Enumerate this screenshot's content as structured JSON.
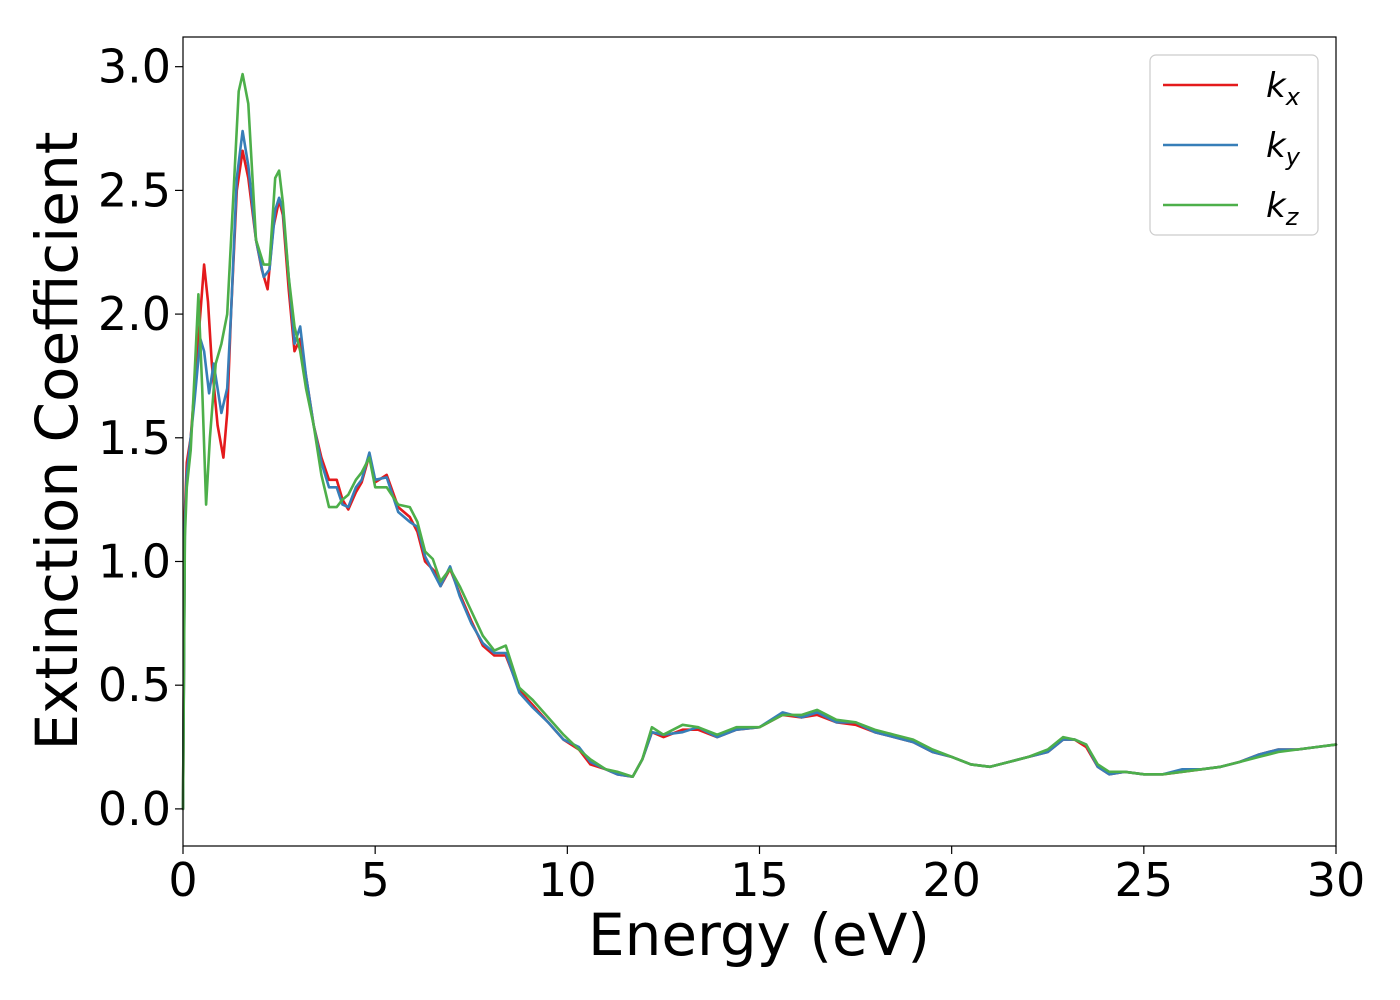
{
  "chart_data": {
    "type": "line",
    "title": "",
    "xlabel": "Energy (eV)",
    "ylabel": "Extinction Coefficient",
    "xlim": [
      0,
      30
    ],
    "ylim": [
      -0.15,
      3.12
    ],
    "xticks": [
      0,
      5,
      10,
      15,
      20,
      25,
      30
    ],
    "xtick_labels": [
      "0",
      "5",
      "10",
      "15",
      "20",
      "25",
      "30"
    ],
    "yticks": [
      0.0,
      0.5,
      1.0,
      1.5,
      2.0,
      2.5,
      3.0
    ],
    "ytick_labels": [
      "0.0",
      "0.5",
      "1.0",
      "1.5",
      "2.0",
      "2.5",
      "3.0"
    ],
    "grid": false,
    "legend_position": "top-right",
    "series": [
      {
        "name": "k_x",
        "label_base": "k",
        "label_sub": "x",
        "color": "#e41a1c",
        "points": [
          [
            0,
            0.0
          ],
          [
            0.05,
            1.2
          ],
          [
            0.1,
            1.4
          ],
          [
            0.2,
            1.5
          ],
          [
            0.3,
            1.7
          ],
          [
            0.4,
            1.9
          ],
          [
            0.55,
            2.2
          ],
          [
            0.65,
            2.05
          ],
          [
            0.75,
            1.8
          ],
          [
            0.9,
            1.55
          ],
          [
            1.05,
            1.42
          ],
          [
            1.15,
            1.6
          ],
          [
            1.25,
            2.0
          ],
          [
            1.4,
            2.5
          ],
          [
            1.55,
            2.66
          ],
          [
            1.7,
            2.55
          ],
          [
            1.9,
            2.3
          ],
          [
            2.05,
            2.18
          ],
          [
            2.2,
            2.1
          ],
          [
            2.35,
            2.35
          ],
          [
            2.5,
            2.46
          ],
          [
            2.6,
            2.4
          ],
          [
            2.75,
            2.1
          ],
          [
            2.9,
            1.85
          ],
          [
            3.05,
            1.9
          ],
          [
            3.2,
            1.75
          ],
          [
            3.4,
            1.55
          ],
          [
            3.6,
            1.42
          ],
          [
            3.8,
            1.33
          ],
          [
            4.0,
            1.33
          ],
          [
            4.15,
            1.25
          ],
          [
            4.3,
            1.21
          ],
          [
            4.5,
            1.28
          ],
          [
            4.65,
            1.32
          ],
          [
            4.85,
            1.43
          ],
          [
            5.0,
            1.32
          ],
          [
            5.3,
            1.35
          ],
          [
            5.6,
            1.22
          ],
          [
            5.9,
            1.18
          ],
          [
            6.1,
            1.12
          ],
          [
            6.3,
            1.0
          ],
          [
            6.55,
            0.96
          ],
          [
            6.7,
            0.9
          ],
          [
            6.95,
            0.97
          ],
          [
            7.2,
            0.87
          ],
          [
            7.5,
            0.76
          ],
          [
            7.8,
            0.66
          ],
          [
            8.1,
            0.62
          ],
          [
            8.4,
            0.62
          ],
          [
            8.75,
            0.48
          ],
          [
            9.1,
            0.42
          ],
          [
            9.5,
            0.35
          ],
          [
            9.9,
            0.28
          ],
          [
            10.3,
            0.24
          ],
          [
            10.6,
            0.18
          ],
          [
            11.0,
            0.16
          ],
          [
            11.3,
            0.14
          ],
          [
            11.7,
            0.13
          ],
          [
            11.95,
            0.2
          ],
          [
            12.2,
            0.31
          ],
          [
            12.5,
            0.29
          ],
          [
            13.0,
            0.32
          ],
          [
            13.4,
            0.32
          ],
          [
            13.9,
            0.29
          ],
          [
            14.4,
            0.32
          ],
          [
            15.0,
            0.33
          ],
          [
            15.6,
            0.38
          ],
          [
            16.1,
            0.37
          ],
          [
            16.5,
            0.38
          ],
          [
            17.0,
            0.35
          ],
          [
            17.5,
            0.34
          ],
          [
            18.0,
            0.31
          ],
          [
            18.5,
            0.29
          ],
          [
            19.0,
            0.27
          ],
          [
            19.5,
            0.23
          ],
          [
            20.0,
            0.21
          ],
          [
            20.5,
            0.18
          ],
          [
            21.0,
            0.17
          ],
          [
            21.5,
            0.19
          ],
          [
            22.0,
            0.21
          ],
          [
            22.5,
            0.23
          ],
          [
            22.9,
            0.28
          ],
          [
            23.2,
            0.28
          ],
          [
            23.5,
            0.25
          ],
          [
            23.8,
            0.17
          ],
          [
            24.1,
            0.14
          ],
          [
            24.5,
            0.15
          ],
          [
            25.0,
            0.14
          ],
          [
            25.5,
            0.14
          ],
          [
            26.0,
            0.15
          ],
          [
            26.5,
            0.16
          ],
          [
            27.0,
            0.17
          ],
          [
            27.5,
            0.19
          ],
          [
            28.0,
            0.22
          ],
          [
            28.5,
            0.24
          ],
          [
            29.0,
            0.24
          ],
          [
            29.5,
            0.25
          ],
          [
            30.0,
            0.26
          ]
        ]
      },
      {
        "name": "k_y",
        "label_base": "k",
        "label_sub": "y",
        "color": "#377eb8",
        "points": [
          [
            0,
            0.0
          ],
          [
            0.05,
            1.15
          ],
          [
            0.1,
            1.35
          ],
          [
            0.2,
            1.5
          ],
          [
            0.3,
            1.65
          ],
          [
            0.45,
            1.9
          ],
          [
            0.55,
            1.85
          ],
          [
            0.68,
            1.68
          ],
          [
            0.8,
            1.8
          ],
          [
            1.0,
            1.6
          ],
          [
            1.15,
            1.7
          ],
          [
            1.25,
            2.0
          ],
          [
            1.4,
            2.55
          ],
          [
            1.55,
            2.74
          ],
          [
            1.7,
            2.6
          ],
          [
            1.9,
            2.3
          ],
          [
            2.1,
            2.15
          ],
          [
            2.25,
            2.18
          ],
          [
            2.4,
            2.42
          ],
          [
            2.5,
            2.47
          ],
          [
            2.6,
            2.42
          ],
          [
            2.75,
            2.15
          ],
          [
            2.9,
            1.88
          ],
          [
            3.05,
            1.95
          ],
          [
            3.2,
            1.75
          ],
          [
            3.4,
            1.55
          ],
          [
            3.6,
            1.4
          ],
          [
            3.8,
            1.3
          ],
          [
            4.0,
            1.3
          ],
          [
            4.15,
            1.23
          ],
          [
            4.3,
            1.22
          ],
          [
            4.5,
            1.3
          ],
          [
            4.65,
            1.33
          ],
          [
            4.85,
            1.44
          ],
          [
            5.0,
            1.33
          ],
          [
            5.3,
            1.34
          ],
          [
            5.6,
            1.2
          ],
          [
            5.9,
            1.16
          ],
          [
            6.1,
            1.14
          ],
          [
            6.3,
            1.02
          ],
          [
            6.5,
            0.96
          ],
          [
            6.7,
            0.9
          ],
          [
            6.95,
            0.98
          ],
          [
            7.2,
            0.86
          ],
          [
            7.5,
            0.75
          ],
          [
            7.8,
            0.67
          ],
          [
            8.1,
            0.63
          ],
          [
            8.4,
            0.63
          ],
          [
            8.75,
            0.47
          ],
          [
            9.1,
            0.41
          ],
          [
            9.5,
            0.35
          ],
          [
            9.9,
            0.28
          ],
          [
            10.3,
            0.25
          ],
          [
            10.6,
            0.19
          ],
          [
            11.0,
            0.16
          ],
          [
            11.3,
            0.14
          ],
          [
            11.7,
            0.13
          ],
          [
            11.95,
            0.2
          ],
          [
            12.2,
            0.31
          ],
          [
            12.5,
            0.3
          ],
          [
            13.0,
            0.31
          ],
          [
            13.4,
            0.33
          ],
          [
            13.9,
            0.29
          ],
          [
            14.4,
            0.32
          ],
          [
            15.0,
            0.33
          ],
          [
            15.6,
            0.39
          ],
          [
            16.1,
            0.37
          ],
          [
            16.5,
            0.39
          ],
          [
            17.0,
            0.35
          ],
          [
            17.5,
            0.35
          ],
          [
            18.0,
            0.31
          ],
          [
            18.5,
            0.29
          ],
          [
            19.0,
            0.27
          ],
          [
            19.5,
            0.23
          ],
          [
            20.0,
            0.21
          ],
          [
            20.5,
            0.18
          ],
          [
            21.0,
            0.17
          ],
          [
            21.5,
            0.19
          ],
          [
            22.0,
            0.21
          ],
          [
            22.5,
            0.23
          ],
          [
            22.9,
            0.28
          ],
          [
            23.2,
            0.28
          ],
          [
            23.5,
            0.26
          ],
          [
            23.8,
            0.17
          ],
          [
            24.1,
            0.14
          ],
          [
            24.5,
            0.15
          ],
          [
            25.0,
            0.14
          ],
          [
            25.5,
            0.14
          ],
          [
            26.0,
            0.16
          ],
          [
            26.5,
            0.16
          ],
          [
            27.0,
            0.17
          ],
          [
            27.5,
            0.19
          ],
          [
            28.0,
            0.22
          ],
          [
            28.5,
            0.24
          ],
          [
            29.0,
            0.24
          ],
          [
            29.5,
            0.25
          ],
          [
            30.0,
            0.26
          ]
        ]
      },
      {
        "name": "k_z",
        "label_base": "k",
        "label_sub": "z",
        "color": "#4daf4a",
        "points": [
          [
            0,
            0.0
          ],
          [
            0.05,
            1.1
          ],
          [
            0.1,
            1.3
          ],
          [
            0.2,
            1.45
          ],
          [
            0.3,
            1.75
          ],
          [
            0.4,
            2.08
          ],
          [
            0.5,
            1.7
          ],
          [
            0.6,
            1.23
          ],
          [
            0.7,
            1.5
          ],
          [
            0.85,
            1.8
          ],
          [
            1.0,
            1.88
          ],
          [
            1.15,
            2.0
          ],
          [
            1.3,
            2.45
          ],
          [
            1.45,
            2.9
          ],
          [
            1.55,
            2.97
          ],
          [
            1.7,
            2.85
          ],
          [
            1.9,
            2.3
          ],
          [
            2.1,
            2.2
          ],
          [
            2.25,
            2.2
          ],
          [
            2.4,
            2.55
          ],
          [
            2.5,
            2.58
          ],
          [
            2.6,
            2.45
          ],
          [
            2.75,
            2.15
          ],
          [
            2.9,
            1.95
          ],
          [
            3.05,
            1.85
          ],
          [
            3.2,
            1.7
          ],
          [
            3.4,
            1.55
          ],
          [
            3.6,
            1.35
          ],
          [
            3.8,
            1.22
          ],
          [
            4.0,
            1.22
          ],
          [
            4.15,
            1.25
          ],
          [
            4.3,
            1.27
          ],
          [
            4.5,
            1.33
          ],
          [
            4.65,
            1.36
          ],
          [
            4.85,
            1.42
          ],
          [
            5.0,
            1.3
          ],
          [
            5.3,
            1.3
          ],
          [
            5.6,
            1.23
          ],
          [
            5.9,
            1.22
          ],
          [
            6.1,
            1.16
          ],
          [
            6.3,
            1.04
          ],
          [
            6.5,
            1.01
          ],
          [
            6.7,
            0.92
          ],
          [
            6.95,
            0.97
          ],
          [
            7.2,
            0.9
          ],
          [
            7.5,
            0.8
          ],
          [
            7.8,
            0.7
          ],
          [
            8.1,
            0.64
          ],
          [
            8.4,
            0.66
          ],
          [
            8.75,
            0.49
          ],
          [
            9.1,
            0.44
          ],
          [
            9.5,
            0.37
          ],
          [
            9.9,
            0.3
          ],
          [
            10.3,
            0.24
          ],
          [
            10.6,
            0.2
          ],
          [
            11.0,
            0.16
          ],
          [
            11.3,
            0.15
          ],
          [
            11.7,
            0.13
          ],
          [
            11.95,
            0.2
          ],
          [
            12.2,
            0.33
          ],
          [
            12.5,
            0.3
          ],
          [
            13.0,
            0.34
          ],
          [
            13.4,
            0.33
          ],
          [
            13.9,
            0.3
          ],
          [
            14.4,
            0.33
          ],
          [
            15.0,
            0.33
          ],
          [
            15.6,
            0.38
          ],
          [
            16.1,
            0.38
          ],
          [
            16.5,
            0.4
          ],
          [
            17.0,
            0.36
          ],
          [
            17.5,
            0.35
          ],
          [
            18.0,
            0.32
          ],
          [
            18.5,
            0.3
          ],
          [
            19.0,
            0.28
          ],
          [
            19.5,
            0.24
          ],
          [
            20.0,
            0.21
          ],
          [
            20.5,
            0.18
          ],
          [
            21.0,
            0.17
          ],
          [
            21.5,
            0.19
          ],
          [
            22.0,
            0.21
          ],
          [
            22.5,
            0.24
          ],
          [
            22.9,
            0.29
          ],
          [
            23.2,
            0.28
          ],
          [
            23.5,
            0.26
          ],
          [
            23.8,
            0.18
          ],
          [
            24.1,
            0.15
          ],
          [
            24.5,
            0.15
          ],
          [
            25.0,
            0.14
          ],
          [
            25.5,
            0.14
          ],
          [
            26.0,
            0.15
          ],
          [
            26.5,
            0.16
          ],
          [
            27.0,
            0.17
          ],
          [
            27.5,
            0.19
          ],
          [
            28.0,
            0.21
          ],
          [
            28.5,
            0.23
          ],
          [
            29.0,
            0.24
          ],
          [
            29.5,
            0.25
          ],
          [
            30.0,
            0.26
          ]
        ]
      }
    ]
  }
}
